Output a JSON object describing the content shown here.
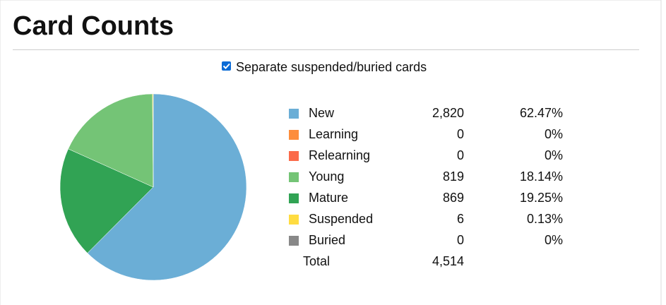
{
  "chart_data": {
    "type": "pie",
    "title": "Card Counts",
    "checkbox_label": "Separate suspended/buried cards",
    "checkbox_checked": true,
    "categories": [
      "New",
      "Learning",
      "Relearning",
      "Young",
      "Mature",
      "Suspended",
      "Buried"
    ],
    "values": [
      2820,
      0,
      0,
      819,
      869,
      6,
      0
    ],
    "value_labels": [
      "2,820",
      "0",
      "0",
      "819",
      "869",
      "6",
      "0"
    ],
    "percentages": [
      62.47,
      0,
      0,
      18.14,
      19.25,
      0.13,
      0
    ],
    "percentage_labels": [
      "62.47%",
      "0%",
      "0%",
      "18.14%",
      "19.25%",
      "0.13%",
      "0%"
    ],
    "colors": [
      "#6baed6",
      "#fd8d3c",
      "#fb6a4a",
      "#74c476",
      "#31a354",
      "#ffdc41",
      "#888888"
    ],
    "total": {
      "label": "Total",
      "value": 4514,
      "value_label": "4,514"
    }
  }
}
